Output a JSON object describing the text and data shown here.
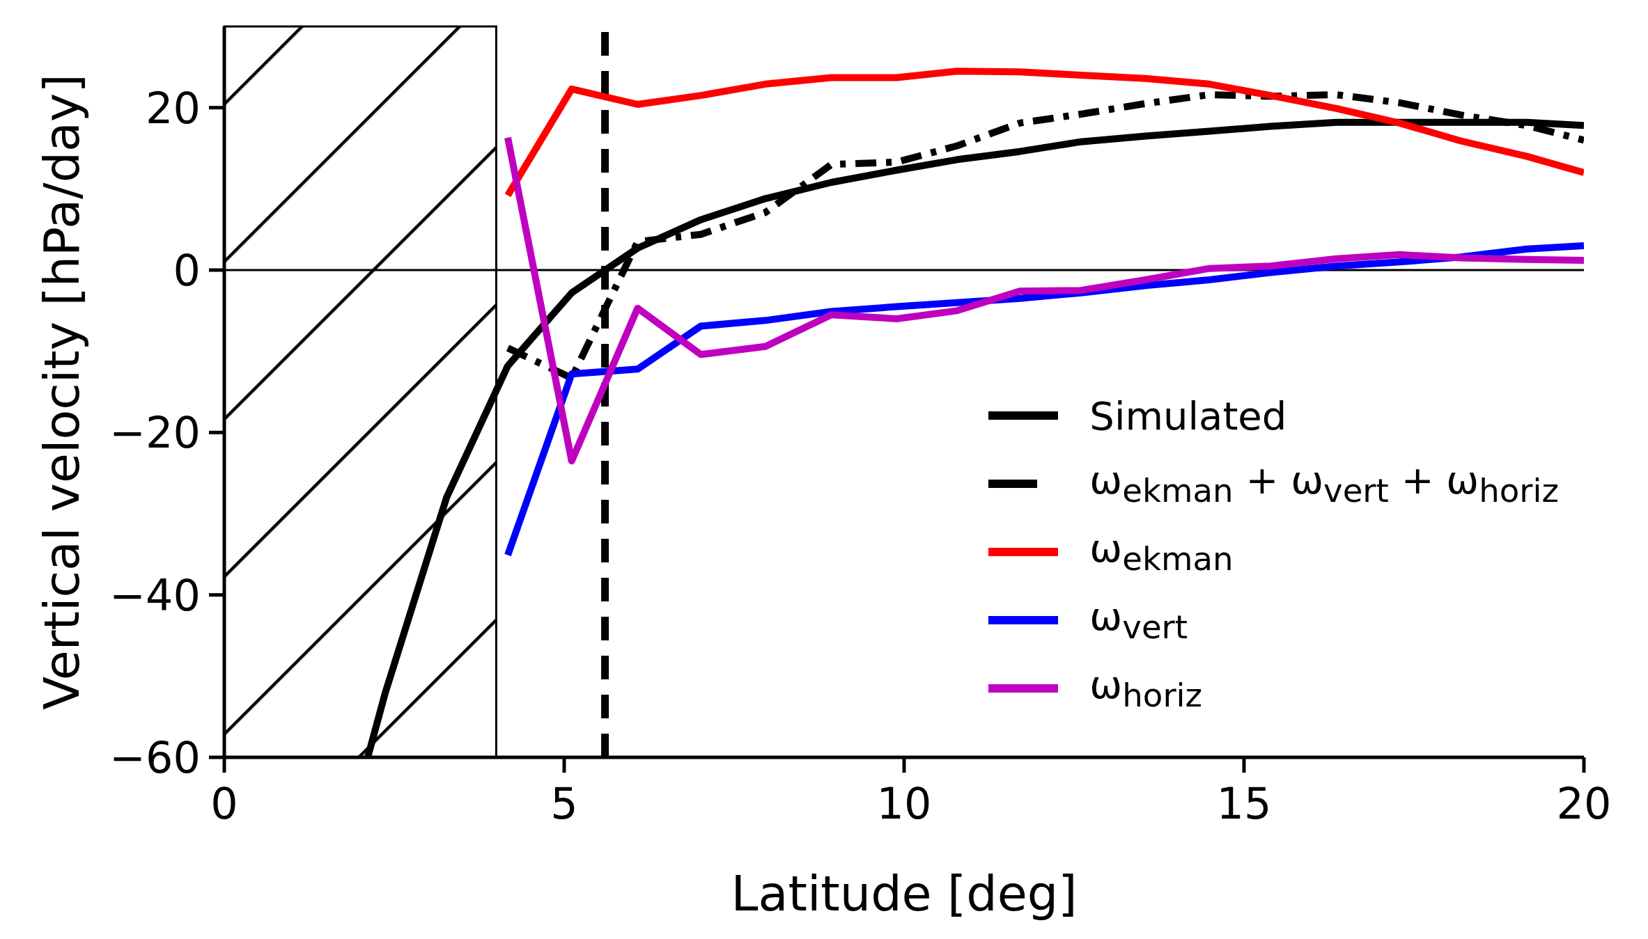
{
  "chart_data": {
    "type": "line",
    "xlabel": "Latitude [deg]",
    "ylabel": "Vertical velocity [hPa/day]",
    "xlim": [
      0,
      20
    ],
    "xticks": [
      0,
      5,
      10,
      15,
      20
    ],
    "ylim": [
      -60,
      30
    ],
    "yticks": [
      {
        "value": -60,
        "label": "−60"
      },
      {
        "value": -40,
        "label": "−40"
      },
      {
        "value": -20,
        "label": "−20"
      },
      0,
      20
    ],
    "grid": false,
    "legend": "bottom right",
    "ref_lines": [
      {
        "axis": "y",
        "value": 0,
        "color": "#000000",
        "line_style": "solid"
      },
      {
        "axis": "x",
        "value": 5.6,
        "color": "#000000",
        "line_style": "dashed"
      }
    ],
    "bands": [
      {
        "axis": "x",
        "from": 0,
        "to": 4,
        "color": "#000000"
      }
    ],
    "series": [
      {
        "name": "Simulated",
        "color": "#000000",
        "line_style": "solid",
        "x": [
          2.11,
          2.37,
          3.27,
          4.17,
          5.11,
          6.08,
          7.01,
          7.96,
          8.93,
          9.89,
          10.78,
          11.7,
          12.6,
          13.55,
          14.49,
          15.39,
          16.36,
          17.29,
          18.19,
          19.16,
          20
        ],
        "values": [
          -60,
          -52,
          -28,
          -11.8,
          -2.8,
          2.7,
          6.2,
          8.8,
          10.8,
          12.3,
          13.6,
          14.6,
          15.8,
          16.5,
          17.1,
          17.7,
          18.2,
          18.2,
          18.2,
          18.2,
          17.8
        ]
      },
      {
        "name": "ω$_{ekman}$ + ω$_{vert}$ + ω$_{horiz}$",
        "color": "#000000",
        "line_style": "dashed",
        "x": [
          4.17,
          5.11,
          6.08,
          7.01,
          7.96,
          8.93,
          9.89,
          10.78,
          11.7,
          12.6,
          13.55,
          14.49,
          15.39,
          16.36,
          17.29,
          18.19,
          19.16,
          20
        ],
        "values": [
          -9.6,
          -13.3,
          3.5,
          4.4,
          7.1,
          13,
          13.3,
          15.3,
          18.1,
          19.2,
          20.5,
          21.6,
          21.4,
          21.6,
          20.6,
          19.1,
          17.8,
          16
        ]
      },
      {
        "name": "ω$_{ekman}$",
        "color": "#ff0000",
        "line_style": "solid",
        "x": [
          4.17,
          5.11,
          6.08,
          7.01,
          7.96,
          8.93,
          9.89,
          10.78,
          11.7,
          12.6,
          13.55,
          14.49,
          15.39,
          16.36,
          17.29,
          18.19,
          19.16,
          20
        ],
        "values": [
          9.2,
          22.3,
          20.4,
          21.5,
          22.9,
          23.7,
          23.7,
          24.5,
          24.4,
          24,
          23.6,
          22.9,
          21.5,
          19.9,
          18.1,
          15.9,
          14,
          12
        ]
      },
      {
        "name": "ω$_{vert}$",
        "color": "#0000ff",
        "line_style": "solid",
        "x": [
          4.17,
          5.11,
          6.08,
          7.01,
          7.96,
          8.93,
          9.89,
          10.78,
          11.7,
          12.6,
          13.55,
          14.49,
          15.39,
          16.36,
          17.29,
          18.19,
          19.16,
          20
        ],
        "values": [
          -35.1,
          -12.8,
          -12.2,
          -6.9,
          -6.2,
          -5.1,
          -4.5,
          -4,
          -3.5,
          -2.8,
          -1.9,
          -1.2,
          -0.3,
          0.5,
          1,
          1.6,
          2.6,
          3
        ]
      },
      {
        "name": "ω$_{horiz}$",
        "color": "#bf00bf",
        "line_style": "solid",
        "x": [
          4.17,
          5.11,
          6.08,
          7.01,
          7.96,
          8.93,
          9.89,
          10.78,
          11.7,
          12.6,
          13.55,
          14.49,
          15.39,
          16.36,
          17.29,
          18.19,
          19.16,
          20
        ],
        "values": [
          16.3,
          -23.5,
          -4.7,
          -10.4,
          -9.4,
          -5.5,
          -6,
          -5,
          -2.6,
          -2.5,
          -1.2,
          0.2,
          0.5,
          1.4,
          1.9,
          1.5,
          1.3,
          1.2
        ]
      }
    ]
  }
}
